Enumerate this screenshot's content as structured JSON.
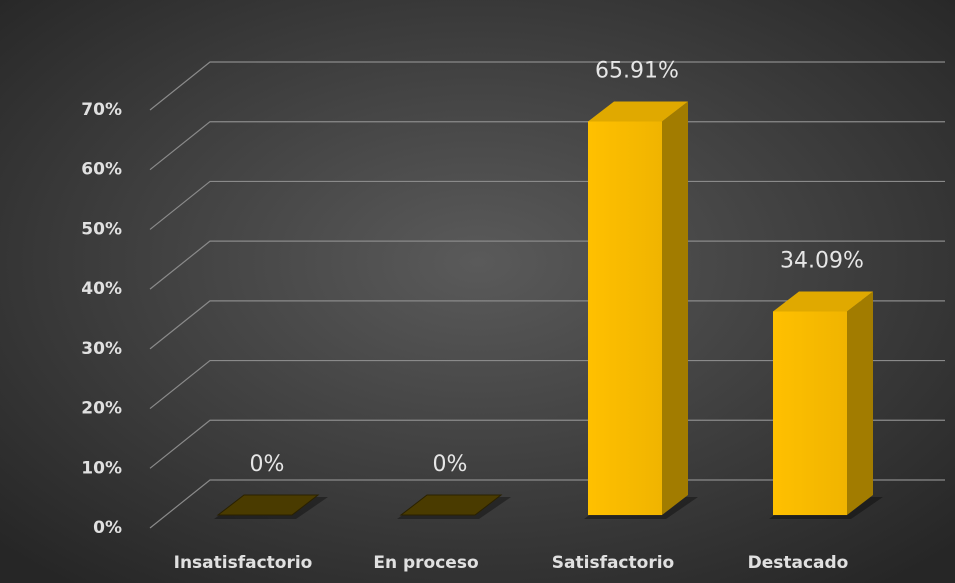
{
  "chart_data": {
    "type": "bar3d",
    "categories": [
      "Insatisfactorio",
      "En proceso",
      "Satisfactorio",
      "Destacado"
    ],
    "values": [
      0,
      0,
      65.91,
      34.09
    ],
    "value_labels": [
      "0%",
      "0%",
      "65.91%",
      "34.09%"
    ],
    "color": "#ffc000",
    "ylim": [
      0,
      70
    ],
    "yticks": [
      {
        "value": 0,
        "label": "0%"
      },
      {
        "value": 10,
        "label": "10%"
      },
      {
        "value": 20,
        "label": "20%"
      },
      {
        "value": 30,
        "label": "30%"
      },
      {
        "value": 40,
        "label": "40%"
      },
      {
        "value": 50,
        "label": "50%"
      },
      {
        "value": 60,
        "label": "60%"
      },
      {
        "value": 70,
        "label": "70%"
      }
    ],
    "grid": true
  }
}
